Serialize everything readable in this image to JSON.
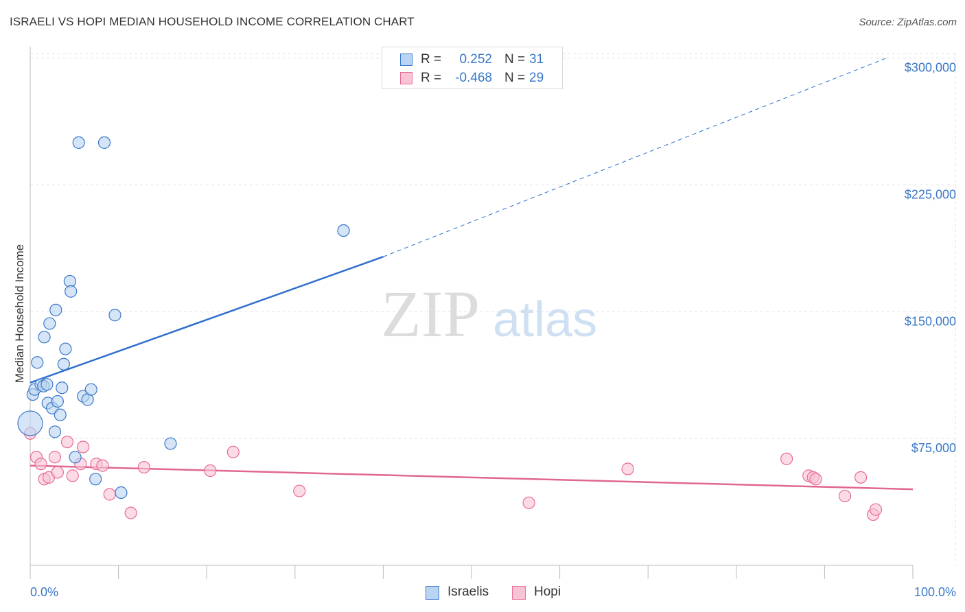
{
  "header": {
    "title": "ISRAELI VS HOPI MEDIAN HOUSEHOLD INCOME CORRELATION CHART",
    "source": "Source: ZipAtlas.com"
  },
  "watermark": {
    "zip": "ZIP",
    "atlas": "atlas"
  },
  "colors": {
    "blue": "#3a78c8",
    "blue_fill": "#b9d3f2",
    "blue_line": "#2f6fce",
    "pink": "#e96a95",
    "pink_fill": "#f7c3d5",
    "pink_line": "#e0678f",
    "grid": "#e2e2e2"
  },
  "legend": {
    "rows": [
      {
        "r_label": "R =",
        "r_value": "0.252",
        "n_label": "N =",
        "n_value": "31"
      },
      {
        "r_label": "R =",
        "r_value": "-0.468",
        "n_label": "N =",
        "n_value": "29"
      }
    ]
  },
  "bottom_legend": {
    "israelis": "Israelis",
    "hopi": "Hopi"
  },
  "chart_data": {
    "type": "scatter",
    "title": "ISRAELI VS HOPI MEDIAN HOUSEHOLD INCOME CORRELATION CHART",
    "xlabel": "",
    "ylabel": "Median Household Income",
    "xlim": [
      0,
      100
    ],
    "ylim": [
      0,
      310000
    ],
    "x_tick_labels": [
      "0.0%",
      "100.0%"
    ],
    "y_ticks": [
      {
        "value": 75000,
        "label": "$75,000"
      },
      {
        "value": 150000,
        "label": "$150,000"
      },
      {
        "value": 225000,
        "label": "$225,000"
      },
      {
        "value": 300000,
        "label": "$300,000"
      }
    ],
    "grid": true,
    "series": [
      {
        "name": "Israelis",
        "r": 0.252,
        "n": 31,
        "points": [
          [
            0.0,
            84000,
            1
          ],
          [
            0.3,
            101000,
            0
          ],
          [
            0.5,
            104000,
            0
          ],
          [
            0.8,
            120000,
            0
          ],
          [
            1.2,
            107000,
            0
          ],
          [
            1.5,
            106000,
            0
          ],
          [
            1.6,
            135000,
            0
          ],
          [
            1.9,
            107000,
            0
          ],
          [
            2.0,
            96000,
            0
          ],
          [
            2.2,
            143000,
            0
          ],
          [
            2.5,
            93000,
            0
          ],
          [
            2.8,
            79000,
            0
          ],
          [
            2.9,
            151000,
            0
          ],
          [
            3.1,
            97000,
            0
          ],
          [
            3.4,
            89000,
            0
          ],
          [
            3.6,
            105000,
            0
          ],
          [
            3.8,
            119000,
            0
          ],
          [
            4.0,
            128000,
            0
          ],
          [
            4.5,
            168000,
            0
          ],
          [
            4.6,
            162000,
            0
          ],
          [
            5.1,
            64000,
            0
          ],
          [
            5.5,
            250000,
            0
          ],
          [
            6.0,
            100000,
            0
          ],
          [
            6.5,
            98000,
            0
          ],
          [
            6.9,
            104000,
            0
          ],
          [
            7.4,
            51000,
            0
          ],
          [
            8.4,
            250000,
            0
          ],
          [
            9.6,
            148000,
            0
          ],
          [
            10.3,
            43000,
            0
          ],
          [
            15.9,
            72000,
            0
          ],
          [
            35.5,
            198000,
            0
          ]
        ],
        "trend": {
          "x0": 0,
          "y0": 108000,
          "x1": 40,
          "y1": 182500,
          "dash_to_x": 97,
          "dash_to_y": 300000
        }
      },
      {
        "name": "Hopi",
        "r": -0.468,
        "n": 29,
        "points": [
          [
            0.0,
            78000,
            0
          ],
          [
            0.7,
            64000,
            0
          ],
          [
            1.2,
            60000,
            0
          ],
          [
            1.6,
            51000,
            0
          ],
          [
            2.1,
            52000,
            0
          ],
          [
            2.8,
            64000,
            0
          ],
          [
            3.1,
            55000,
            0
          ],
          [
            4.2,
            73000,
            0
          ],
          [
            4.8,
            53000,
            0
          ],
          [
            5.7,
            60000,
            0
          ],
          [
            6.0,
            70000,
            0
          ],
          [
            7.5,
            60000,
            0
          ],
          [
            8.2,
            59000,
            0
          ],
          [
            9.0,
            42000,
            0
          ],
          [
            11.4,
            31000,
            0
          ],
          [
            12.9,
            58000,
            0
          ],
          [
            20.4,
            56000,
            0
          ],
          [
            23.0,
            67000,
            0
          ],
          [
            30.5,
            44000,
            0
          ],
          [
            56.5,
            37000,
            0
          ],
          [
            67.7,
            57000,
            0
          ],
          [
            85.7,
            63000,
            0
          ],
          [
            88.2,
            53000,
            0
          ],
          [
            88.7,
            52000,
            0
          ],
          [
            89.0,
            51000,
            0
          ],
          [
            92.3,
            41000,
            0
          ],
          [
            94.1,
            52000,
            0
          ],
          [
            95.5,
            30000,
            0
          ],
          [
            95.8,
            33000,
            0
          ]
        ],
        "trend": {
          "x0": 0,
          "y0": 59000,
          "x1": 100,
          "y1": 45000
        }
      }
    ]
  }
}
